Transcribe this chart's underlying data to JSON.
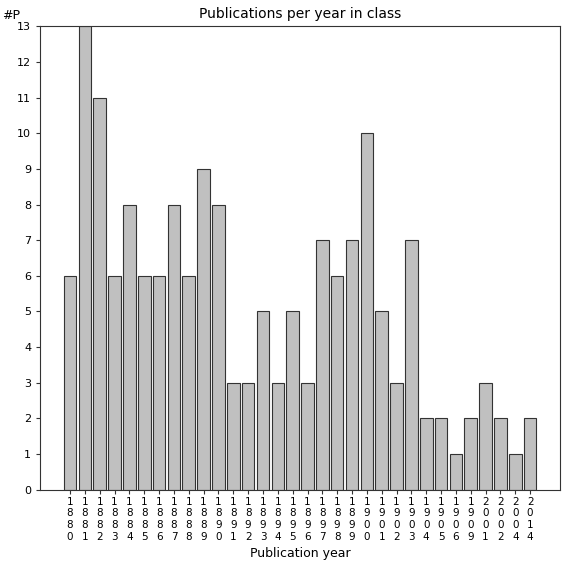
{
  "title": "Publications per year in class",
  "xlabel": "Publication year",
  "ylabel": "#P",
  "bar_color": "#c0c0c0",
  "edge_color": "#333333",
  "categories": [
    "1880",
    "1881",
    "1882",
    "1883",
    "1884",
    "1885",
    "1886",
    "1887",
    "1888",
    "1889",
    "1890",
    "1891",
    "1892",
    "1893",
    "1894",
    "1895",
    "1896",
    "1897",
    "1898",
    "1899",
    "1900",
    "1901",
    "1902",
    "1903",
    "1904",
    "1905",
    "1906",
    "1909",
    "2001",
    "2002",
    "2004",
    "2014"
  ],
  "values": [
    6,
    13,
    11,
    6,
    8,
    6,
    6,
    8,
    6,
    9,
    8,
    3,
    3,
    5,
    3,
    5,
    3,
    7,
    6,
    7,
    10,
    5,
    3,
    7,
    2,
    2,
    1,
    2,
    3,
    2,
    1,
    2
  ],
  "ylim": [
    0,
    13
  ],
  "yticks": [
    0,
    1,
    2,
    3,
    4,
    5,
    6,
    7,
    8,
    9,
    10,
    11,
    12,
    13
  ],
  "background_color": "#ffffff",
  "figsize": [
    5.67,
    5.67
  ],
  "dpi": 100
}
